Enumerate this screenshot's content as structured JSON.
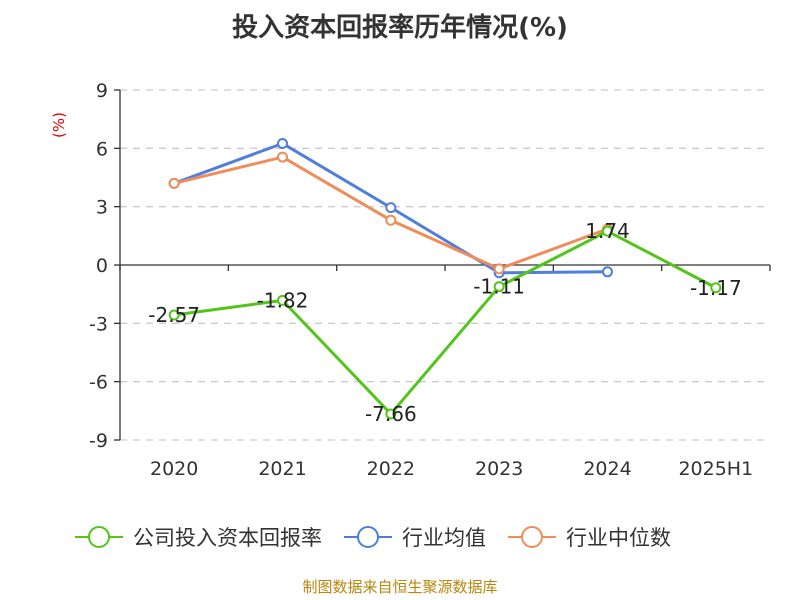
{
  "chart_data": {
    "type": "line",
    "title": "投入资本回报率历年情况(%)",
    "ylabel": "(%)",
    "categories": [
      "2020",
      "2021",
      "2022",
      "2023",
      "2024",
      "2025H1"
    ],
    "y_ticks": [
      "9",
      "6",
      "3",
      "0",
      "-3",
      "-6",
      "-9"
    ],
    "ylim": [
      -9,
      9
    ],
    "grid": true,
    "legend_position": "bottom",
    "series": [
      {
        "name": "公司投入资本回报率",
        "color": "#52c41a",
        "values": [
          -2.57,
          -1.82,
          -7.66,
          -1.11,
          1.74,
          -1.17
        ],
        "labels": [
          "-2.57",
          "-1.82",
          "-7.66",
          "-1.11",
          "1.74",
          "-1.17"
        ]
      },
      {
        "name": "行业均值",
        "color": "#4f7fdc",
        "values": [
          4.2,
          6.25,
          2.95,
          -0.4,
          -0.35,
          null
        ]
      },
      {
        "name": "行业中位数",
        "color": "#f08c5a",
        "values": [
          4.2,
          5.55,
          2.3,
          -0.2,
          1.85,
          null
        ]
      }
    ]
  },
  "footer": {
    "source": "制图数据来自恒生聚源数据库"
  }
}
